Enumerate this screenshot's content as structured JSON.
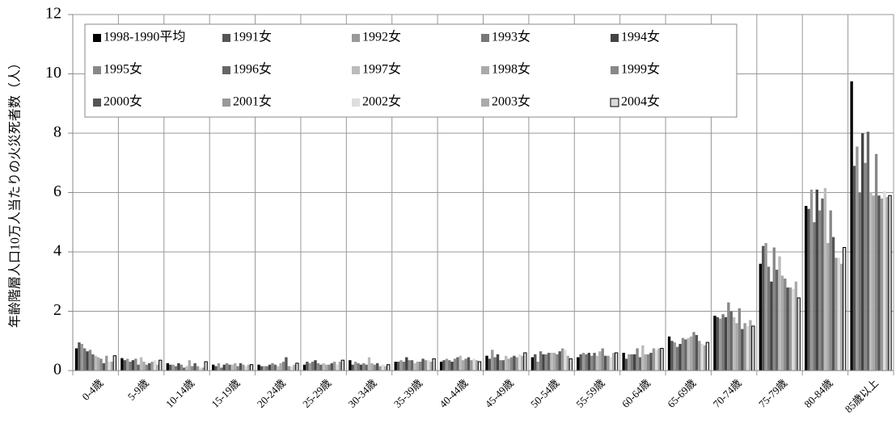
{
  "chart_data": {
    "type": "bar",
    "y_label": "年齢階層人口10万人当たりの火災死者数（人）",
    "categories": [
      "0-4歳",
      "5-9歳",
      "10-14歳",
      "15-19歳",
      "20-24歳",
      "25-29歳",
      "30-34歳",
      "35-39歳",
      "40-44歳",
      "45-49歳",
      "50-54歳",
      "55-59歳",
      "60-64歳",
      "65-69歳",
      "70-74歳",
      "75-79歳",
      "80-84歳",
      "85歳以上"
    ],
    "ylim": [
      0,
      12
    ],
    "yticks": [
      0,
      2,
      4,
      6,
      8,
      10,
      12
    ],
    "grid": true,
    "series": [
      {
        "name": "1998-1990平均",
        "color": "#000000",
        "values": [
          0.75,
          0.42,
          0.25,
          0.2,
          0.2,
          0.2,
          0.35,
          0.3,
          0.3,
          0.5,
          0.45,
          0.45,
          0.6,
          1.15,
          1.85,
          3.6,
          5.55,
          9.75
        ]
      },
      {
        "name": "1991女",
        "color": "#555555",
        "values": [
          0.95,
          0.35,
          0.2,
          0.15,
          0.15,
          0.3,
          0.2,
          0.3,
          0.35,
          0.4,
          0.55,
          0.55,
          0.4,
          1.0,
          1.8,
          4.2,
          5.45,
          6.9
        ]
      },
      {
        "name": "1992女",
        "color": "#999999",
        "values": [
          0.9,
          0.4,
          0.2,
          0.25,
          0.15,
          0.25,
          0.3,
          0.35,
          0.4,
          0.7,
          0.3,
          0.6,
          0.55,
          0.95,
          1.75,
          4.3,
          6.1,
          7.55
        ]
      },
      {
        "name": "1993女",
        "color": "#777777",
        "values": [
          0.75,
          0.3,
          0.15,
          0.1,
          0.15,
          0.3,
          0.25,
          0.3,
          0.35,
          0.45,
          0.65,
          0.55,
          0.55,
          0.8,
          1.9,
          3.5,
          5.0,
          6.0
        ]
      },
      {
        "name": "1994女",
        "color": "#444444",
        "values": [
          0.65,
          0.35,
          0.25,
          0.2,
          0.2,
          0.35,
          0.2,
          0.45,
          0.3,
          0.55,
          0.55,
          0.6,
          0.55,
          0.9,
          1.8,
          3.0,
          6.1,
          8.0
        ]
      },
      {
        "name": "1995女",
        "color": "#888888",
        "values": [
          0.7,
          0.4,
          0.2,
          0.25,
          0.25,
          0.25,
          0.25,
          0.35,
          0.4,
          0.35,
          0.55,
          0.5,
          0.75,
          1.1,
          2.3,
          4.15,
          5.4,
          7.0
        ]
      },
      {
        "name": "1996女",
        "color": "#666666",
        "values": [
          0.55,
          0.2,
          0.1,
          0.2,
          0.2,
          0.2,
          0.2,
          0.35,
          0.45,
          0.35,
          0.6,
          0.6,
          0.45,
          1.05,
          2.0,
          3.4,
          5.8,
          8.05
        ]
      },
      {
        "name": "1997女",
        "color": "#bbbbbb",
        "values": [
          0.5,
          0.45,
          0.15,
          0.2,
          0.15,
          0.25,
          0.45,
          0.25,
          0.5,
          0.5,
          0.6,
          0.5,
          0.85,
          1.1,
          1.8,
          3.85,
          6.15,
          6.0
        ]
      },
      {
        "name": "1998女",
        "color": "#aaaaaa",
        "values": [
          0.45,
          0.3,
          0.35,
          0.25,
          0.25,
          0.2,
          0.25,
          0.3,
          0.35,
          0.4,
          0.6,
          0.65,
          0.55,
          1.15,
          1.6,
          3.2,
          4.3,
          5.9
        ]
      },
      {
        "name": "1999女",
        "color": "#888888",
        "values": [
          0.4,
          0.2,
          0.15,
          0.15,
          0.3,
          0.2,
          0.2,
          0.3,
          0.4,
          0.45,
          0.55,
          0.75,
          0.55,
          1.3,
          2.1,
          3.1,
          5.4,
          7.3
        ]
      },
      {
        "name": "2000女",
        "color": "#555555",
        "values": [
          0.25,
          0.25,
          0.25,
          0.25,
          0.45,
          0.25,
          0.25,
          0.4,
          0.45,
          0.5,
          0.65,
          0.5,
          0.6,
          1.2,
          1.4,
          2.8,
          4.5,
          5.9
        ]
      },
      {
        "name": "2001女",
        "color": "#999999",
        "values": [
          0.5,
          0.3,
          0.15,
          0.2,
          0.15,
          0.3,
          0.15,
          0.35,
          0.35,
          0.45,
          0.75,
          0.5,
          0.75,
          1.0,
          1.6,
          2.8,
          3.8,
          5.8
        ]
      },
      {
        "name": "2002女",
        "color": "#dddddd",
        "values": [
          0.3,
          0.35,
          0.1,
          0.15,
          0.15,
          0.2,
          0.2,
          0.35,
          0.4,
          0.55,
          0.7,
          0.45,
          0.7,
          0.9,
          1.5,
          2.75,
          3.8,
          6.05
        ]
      },
      {
        "name": "2003女",
        "color": "#aaaaaa",
        "values": [
          0.3,
          0.2,
          0.1,
          0.2,
          0.2,
          0.3,
          0.15,
          0.3,
          0.35,
          0.5,
          0.5,
          0.6,
          0.75,
          0.85,
          1.7,
          3.0,
          3.6,
          5.85
        ]
      },
      {
        "name": "2004女",
        "color": "#d9d9d9",
        "edgecolor": "#000000",
        "values": [
          0.5,
          0.35,
          0.3,
          0.2,
          0.25,
          0.35,
          0.2,
          0.4,
          0.3,
          0.6,
          0.4,
          0.6,
          0.75,
          0.95,
          1.5,
          2.45,
          4.15,
          5.9
        ]
      }
    ]
  }
}
